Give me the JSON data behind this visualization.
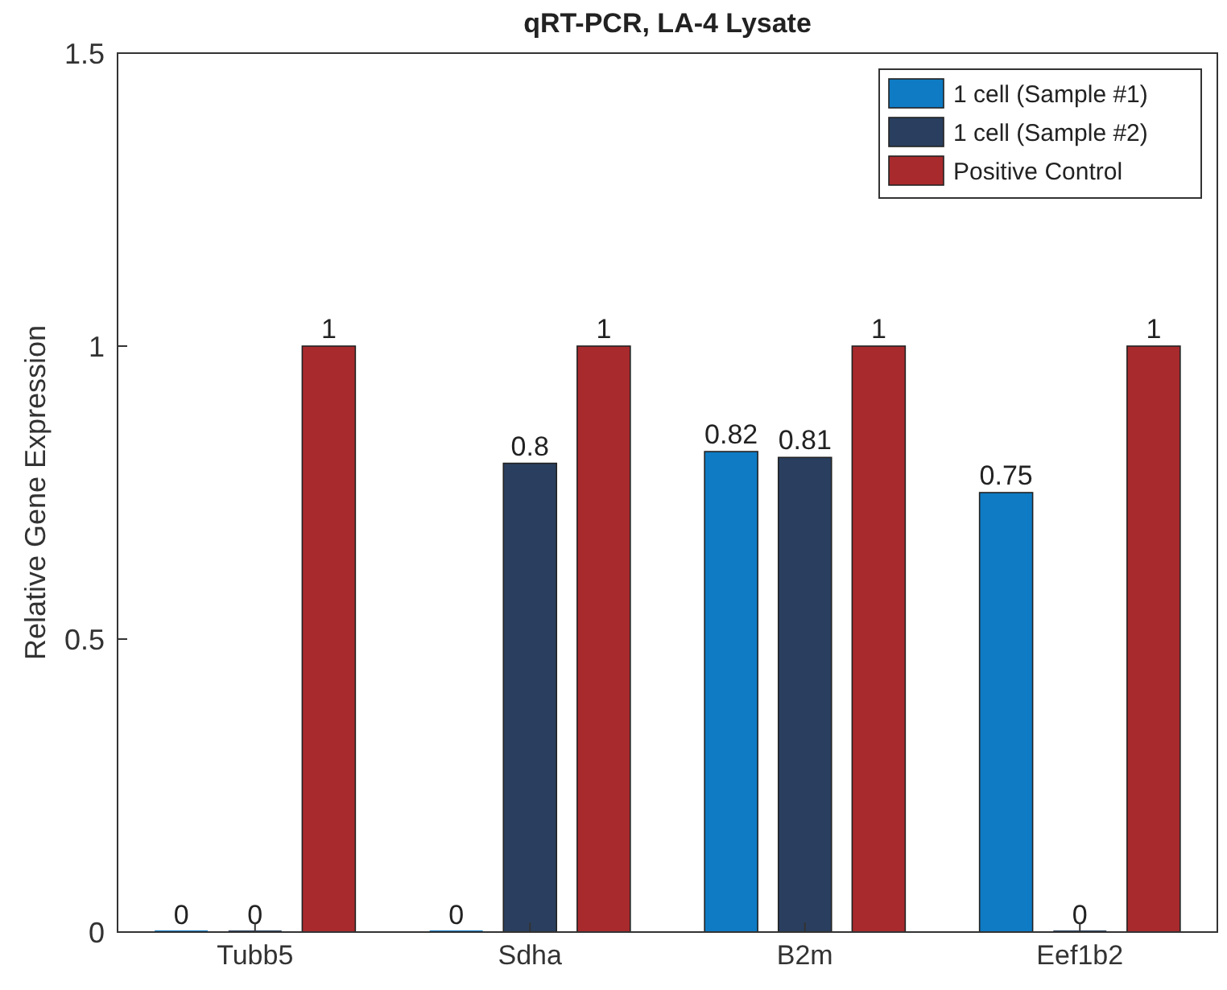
{
  "chart_data": {
    "type": "bar",
    "title": "qRT-PCR, LA-4 Lysate",
    "ylabel": "Relative Gene Expression",
    "categories": [
      "Tubb5",
      "Sdha",
      "B2m",
      "Eef1b2"
    ],
    "series": [
      {
        "name": "1 cell (Sample #1)",
        "color": "#0e7bc4",
        "values": [
          0,
          0,
          0.82,
          0.75
        ]
      },
      {
        "name": "1 cell (Sample #2)",
        "color": "#2a3f5f",
        "values": [
          0,
          0.8,
          0.81,
          0
        ]
      },
      {
        "name": "Positive Control",
        "color": "#a82a2d",
        "values": [
          1,
          1,
          1,
          1
        ]
      }
    ],
    "ylim": [
      0,
      1.5
    ],
    "yticks": [
      0,
      0.5,
      1,
      1.5
    ],
    "data_labels": true,
    "legend": "top right",
    "grid": false
  }
}
